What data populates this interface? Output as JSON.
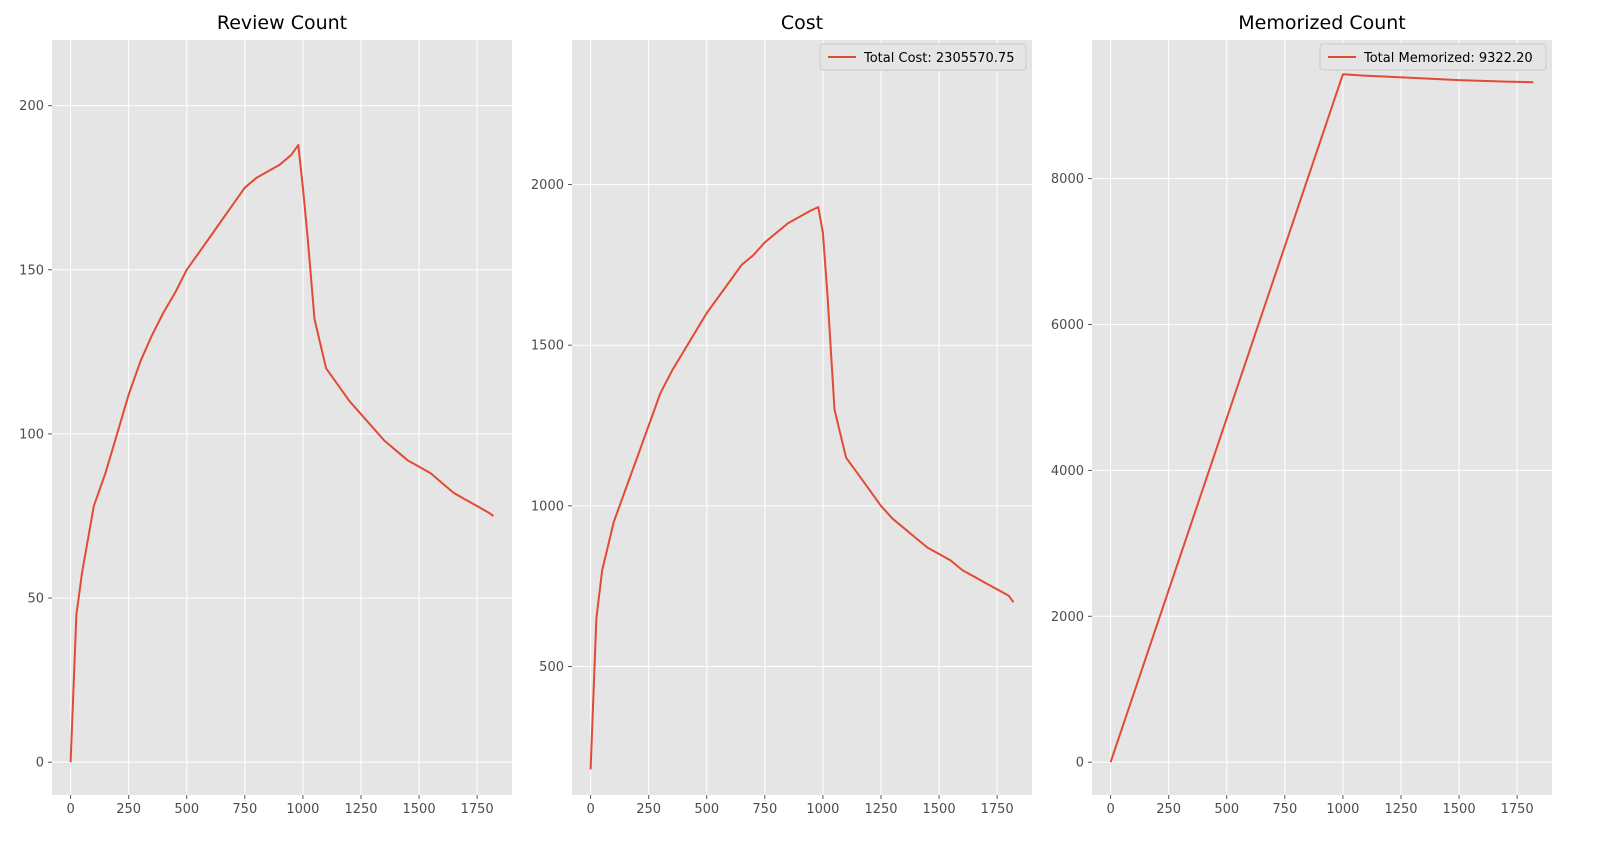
{
  "chart_data": [
    {
      "type": "line",
      "title": "Review Count",
      "xlabel": "",
      "ylabel": "",
      "xlim": [
        -80,
        1900
      ],
      "ylim": [
        -10,
        220
      ],
      "xticks": [
        0,
        250,
        500,
        750,
        1000,
        1250,
        1500,
        1750
      ],
      "yticks": [
        0,
        50,
        100,
        150,
        200
      ],
      "grid": true,
      "color": "#e24a33",
      "series": [
        {
          "x": [
            0,
            25,
            50,
            100,
            150,
            200,
            250,
            300,
            350,
            400,
            450,
            500,
            550,
            600,
            650,
            700,
            750,
            800,
            850,
            900,
            950,
            980,
            1000,
            1020,
            1050,
            1100,
            1150,
            1200,
            1250,
            1300,
            1350,
            1400,
            1450,
            1500,
            1550,
            1600,
            1650,
            1700,
            1750,
            1800,
            1820
          ],
          "y": [
            0,
            45,
            58,
            78,
            88,
            100,
            112,
            122,
            130,
            137,
            143,
            150,
            155,
            160,
            165,
            170,
            175,
            178,
            180,
            182,
            185,
            188,
            175,
            160,
            135,
            120,
            115,
            110,
            106,
            102,
            98,
            95,
            92,
            90,
            88,
            85,
            82,
            80,
            78,
            76,
            75
          ]
        }
      ]
    },
    {
      "type": "line",
      "title": "Cost",
      "xlabel": "",
      "ylabel": "",
      "xlim": [
        -80,
        1900
      ],
      "ylim": [
        100,
        2450
      ],
      "xticks": [
        0,
        250,
        500,
        750,
        1000,
        1250,
        1500,
        1750
      ],
      "yticks": [
        500,
        1000,
        1500,
        2000
      ],
      "grid": true,
      "color": "#e24a33",
      "legend": {
        "position": "top-right",
        "entries": [
          "Total Cost: 2305570.75"
        ]
      },
      "series": [
        {
          "name": "Total Cost: 2305570.75",
          "x": [
            0,
            25,
            50,
            100,
            150,
            200,
            250,
            300,
            350,
            400,
            450,
            500,
            550,
            600,
            650,
            700,
            750,
            800,
            850,
            900,
            950,
            980,
            1000,
            1020,
            1050,
            1100,
            1150,
            1200,
            1250,
            1300,
            1350,
            1400,
            1450,
            1500,
            1550,
            1600,
            1650,
            1700,
            1750,
            1800,
            1820
          ],
          "y": [
            180,
            650,
            800,
            950,
            1050,
            1150,
            1250,
            1350,
            1420,
            1480,
            1540,
            1600,
            1650,
            1700,
            1750,
            1780,
            1820,
            1850,
            1880,
            1900,
            1920,
            1930,
            1850,
            1650,
            1300,
            1150,
            1100,
            1050,
            1000,
            960,
            930,
            900,
            870,
            850,
            830,
            800,
            780,
            760,
            740,
            720,
            700
          ]
        }
      ]
    },
    {
      "type": "line",
      "title": "Memorized Count",
      "xlabel": "",
      "ylabel": "",
      "xlim": [
        -80,
        1900
      ],
      "ylim": [
        -450,
        9900
      ],
      "xticks": [
        0,
        250,
        500,
        750,
        1000,
        1250,
        1500,
        1750
      ],
      "yticks": [
        0,
        2000,
        4000,
        6000,
        8000
      ],
      "grid": true,
      "color": "#e24a33",
      "legend": {
        "position": "top-right",
        "entries": [
          "Total Memorized: 9322.20"
        ]
      },
      "series": [
        {
          "name": "Total Memorized: 9322.20",
          "x": [
            0,
            1000,
            1100,
            1200,
            1300,
            1400,
            1500,
            1600,
            1700,
            1820
          ],
          "y": [
            0,
            9430,
            9410,
            9395,
            9380,
            9365,
            9350,
            9340,
            9330,
            9322
          ]
        }
      ]
    }
  ]
}
